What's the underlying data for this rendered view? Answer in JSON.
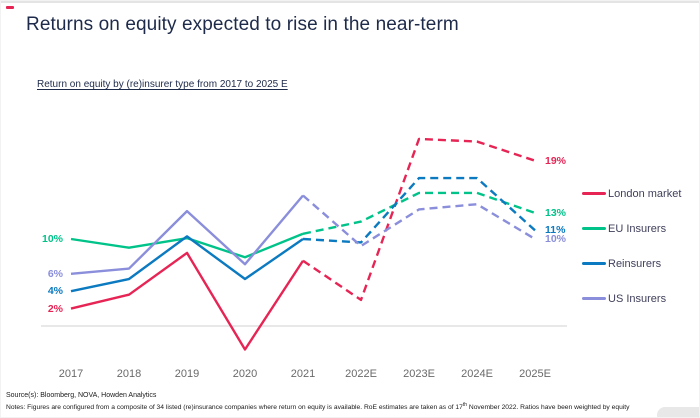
{
  "page": {
    "title": "Returns on equity expected to rise in the near-term",
    "subtitle": "Return on equity by (re)insurer type from 2017 to 2025 E"
  },
  "footer": {
    "source": "Source(s): Bloomberg, NOVA, Howden Analytics",
    "notes_prefix": "Notes: Figures are configured from a composite of 34 listed (re)insurance companies where return on equity is available. RoE estimates are taken as of 17",
    "notes_sup": "th",
    "notes_suffix": " November 2022. Ratios have been weighted by equity"
  },
  "colors": {
    "title_navy": "#1e2a4a",
    "axis_gray": "#d9d9d9",
    "x_label_gray": "#6a6a6a"
  },
  "chart_data": {
    "type": "line",
    "title": "Return on equity by (re)insurer type from 2017 to 2025 E",
    "unit": "percent",
    "categories": [
      "2017",
      "2018",
      "2019",
      "2020",
      "2021",
      "2022E",
      "2023E",
      "2024E",
      "2025E"
    ],
    "forecast_start_index": 4,
    "forecast_style": "dashed",
    "ylim": [
      -4,
      23
    ],
    "grid": false,
    "legend_position": "right",
    "series": [
      {
        "name": "London market",
        "color": "#e62555",
        "values": [
          2,
          3.6,
          8.4,
          -2.7,
          7.5,
          3,
          21.5,
          21.2,
          19
        ],
        "start_label": "2%",
        "end_label": "19%"
      },
      {
        "name": "EU Insurers",
        "color": "#00c389",
        "values": [
          10,
          9,
          10.1,
          7.9,
          10.6,
          12,
          15.3,
          15.3,
          13
        ],
        "start_label": "10%",
        "end_label": "13%"
      },
      {
        "name": "Reinsurers",
        "color": "#0b7ac0",
        "values": [
          4,
          5.4,
          10.3,
          5.4,
          10,
          9.6,
          17,
          17,
          11
        ],
        "start_label": "4%",
        "end_label": "11%"
      },
      {
        "name": "US Insurers",
        "color": "#8a8edb",
        "values": [
          6,
          6.6,
          13.2,
          7.1,
          15,
          9.2,
          13.4,
          14,
          10
        ],
        "start_label": "6%",
        "end_label": "10%"
      }
    ]
  }
}
